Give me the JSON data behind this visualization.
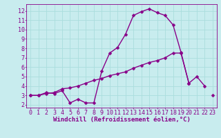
{
  "xlabel": "Windchill (Refroidissement éolien,°C)",
  "background_color": "#c8ecee",
  "line_color": "#880088",
  "grid_color": "#aadddd",
  "x_values": [
    0,
    1,
    2,
    3,
    4,
    5,
    6,
    7,
    8,
    9,
    10,
    11,
    12,
    13,
    14,
    15,
    16,
    17,
    18,
    19,
    20,
    21,
    22,
    23
  ],
  "curve1_y": [
    3.0,
    3.0,
    3.3,
    3.2,
    3.5,
    2.2,
    2.6,
    2.2,
    2.2,
    5.6,
    7.5,
    8.1,
    9.5,
    11.5,
    11.9,
    12.2,
    11.8,
    11.5,
    10.5,
    7.6,
    4.3,
    5.0,
    4.0,
    null
  ],
  "curve2_y": [
    3.0,
    3.0,
    3.2,
    3.3,
    3.7,
    3.8,
    4.0,
    4.3,
    4.6,
    4.8,
    5.1,
    5.3,
    5.5,
    5.9,
    6.2,
    6.5,
    6.7,
    7.0,
    7.5,
    7.5,
    4.3,
    null,
    null,
    3.0
  ],
  "xlim": [
    -0.5,
    23.5
  ],
  "ylim": [
    1.7,
    12.7
  ],
  "yticks": [
    2,
    3,
    4,
    5,
    6,
    7,
    8,
    9,
    10,
    11,
    12
  ],
  "xticks": [
    0,
    1,
    2,
    3,
    4,
    5,
    6,
    7,
    8,
    9,
    10,
    11,
    12,
    13,
    14,
    15,
    16,
    17,
    18,
    19,
    20,
    21,
    22,
    23
  ],
  "marker_size": 2.5,
  "line_width": 1.0,
  "font_size": 6,
  "xlabel_fontsize": 6.5
}
